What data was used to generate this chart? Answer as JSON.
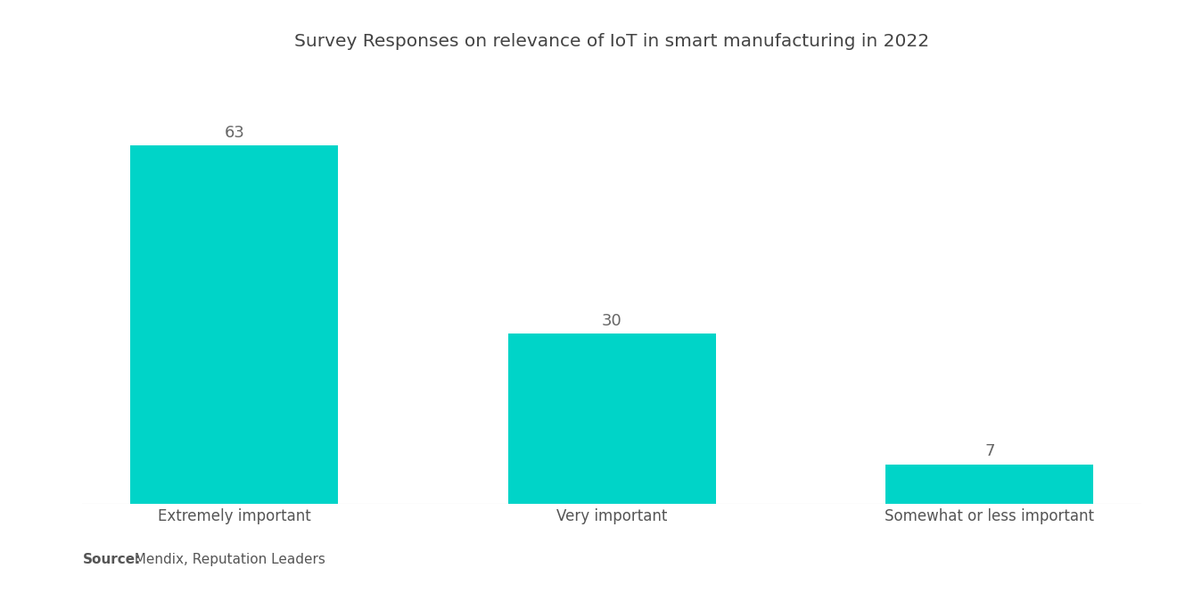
{
  "title": "Survey Responses on relevance of IoT in smart manufacturing in 2022",
  "categories": [
    "Extremely important",
    "Very important",
    "Somewhat or less important"
  ],
  "values": [
    63,
    30,
    7
  ],
  "bar_color": "#00D4C8",
  "value_label_color": "#666666",
  "title_color": "#444444",
  "tick_label_color": "#555555",
  "source_label_bold": "Source:",
  "source_label_rest": "  Mendix, Reputation Leaders",
  "background_color": "#ffffff",
  "title_fontsize": 14.5,
  "value_fontsize": 13,
  "tick_fontsize": 12,
  "source_fontsize": 11,
  "ylim": [
    0,
    75
  ],
  "bar_width": 0.55,
  "x_positions": [
    0,
    1,
    2
  ]
}
